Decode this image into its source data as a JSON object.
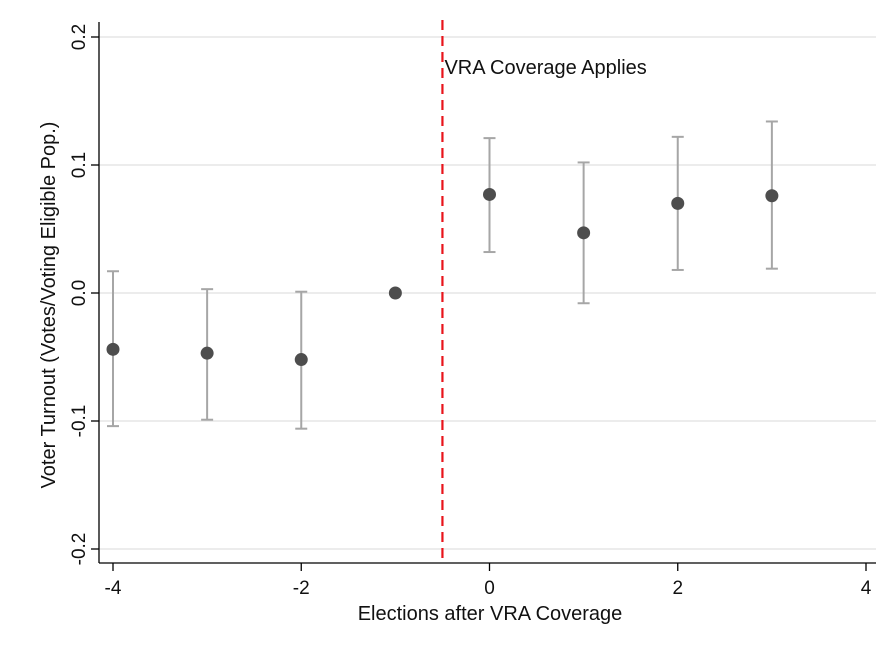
{
  "chart_data": {
    "type": "scatter",
    "title": "",
    "xlabel": "Elections after VRA Coverage",
    "ylabel": "Voter Turnout (Votes/Voting Eligible Pop.)",
    "xlim": [
      -4,
      4
    ],
    "ylim": [
      -0.2,
      0.2
    ],
    "x_ticks": [
      -4,
      -2,
      0,
      2,
      4
    ],
    "x_tick_labels": [
      "-4",
      "-2",
      "0",
      "2",
      "4"
    ],
    "y_ticks": [
      -0.2,
      -0.1,
      0.0,
      0.1,
      0.2
    ],
    "y_tick_labels": [
      "-0.2",
      "-0.1",
      "0.0",
      "0.1",
      "0.2"
    ],
    "grid": "horizontal",
    "points": [
      {
        "x": -4,
        "y": -0.044,
        "ci_low": -0.104,
        "ci_high": 0.017
      },
      {
        "x": -3,
        "y": -0.047,
        "ci_low": -0.099,
        "ci_high": 0.003
      },
      {
        "x": -2,
        "y": -0.052,
        "ci_low": -0.106,
        "ci_high": 0.001
      },
      {
        "x": -1,
        "y": 0.0,
        "ci_low": 0.0,
        "ci_high": 0.0
      },
      {
        "x": 0,
        "y": 0.077,
        "ci_low": 0.032,
        "ci_high": 0.121
      },
      {
        "x": 1,
        "y": 0.047,
        "ci_low": -0.008,
        "ci_high": 0.102
      },
      {
        "x": 2,
        "y": 0.07,
        "ci_low": 0.018,
        "ci_high": 0.122
      },
      {
        "x": 3,
        "y": 0.076,
        "ci_low": 0.019,
        "ci_high": 0.134
      }
    ],
    "reference_line": {
      "x": -0.5,
      "style": "dashed",
      "color": "#e8141b"
    },
    "annotation": "VRA Coverage Applies",
    "colors": {
      "point": "#4d4d4d",
      "ci": "#a6a6a6",
      "grid": "#e6e6e6",
      "axis": "#000000"
    }
  }
}
